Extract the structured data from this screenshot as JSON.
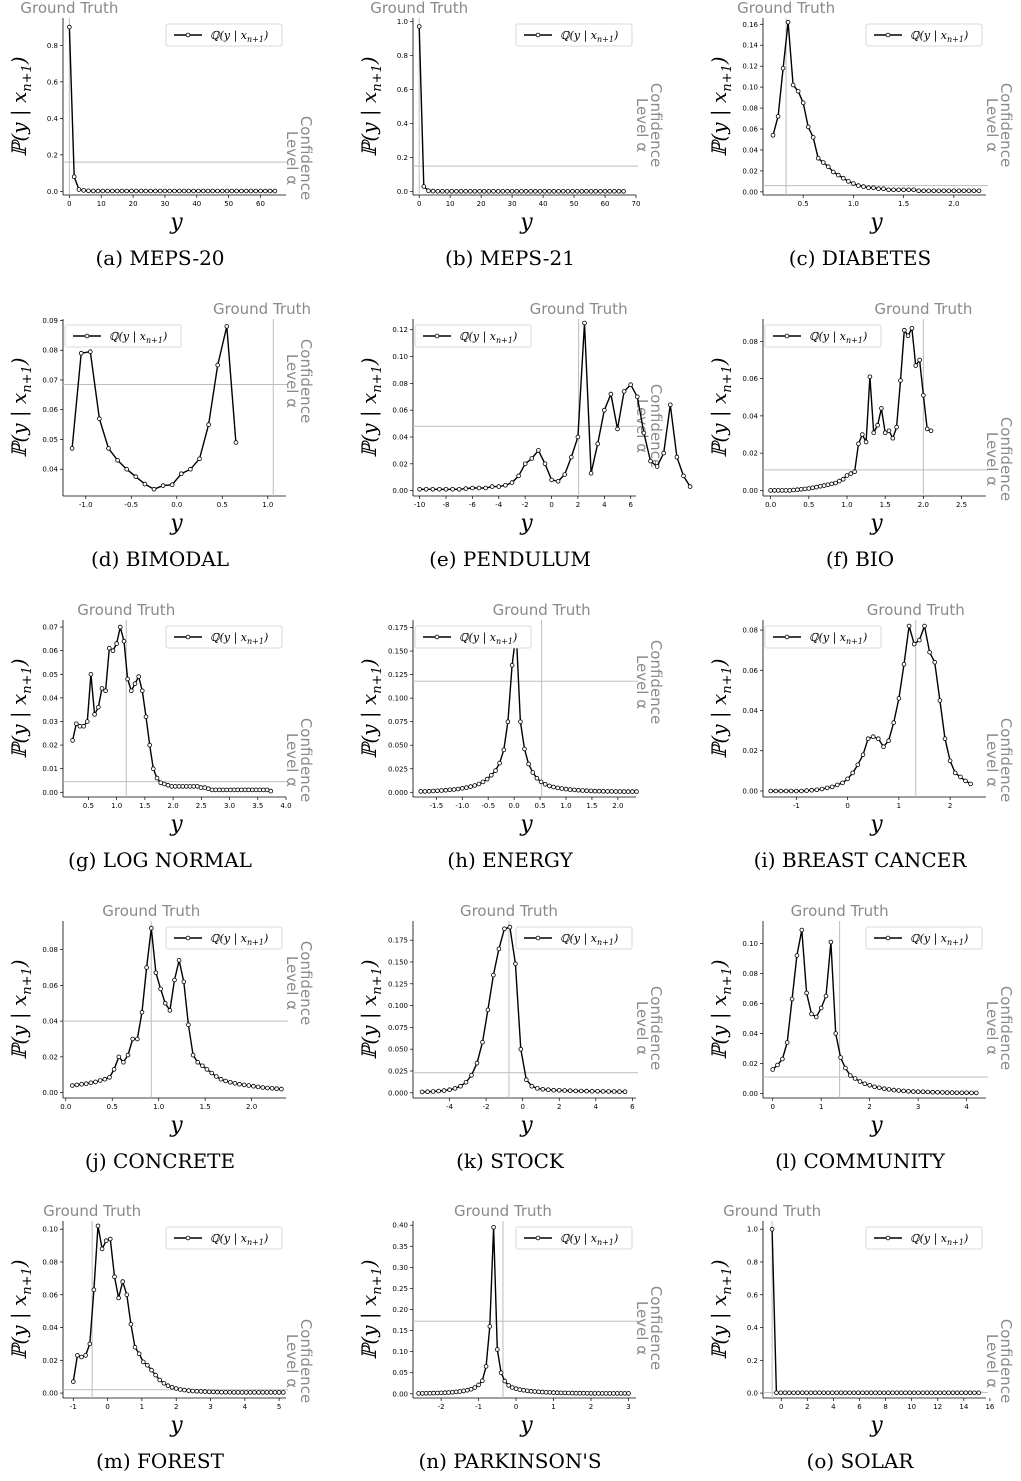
{
  "common": {
    "ylabel": "ℙ(y | x",
    "ylabel_sub": "n+1",
    "ylabel_end": ")",
    "xlabel": "y",
    "legend": "ℚ(y | x",
    "legend_sub": "n+1",
    "legend_end": ")",
    "ground_truth": "Ground Truth",
    "confidence_line1": "Confidence",
    "confidence_line2": "Level α"
  },
  "chart_data": [
    {
      "type": "line",
      "caption": "(a) MEPS-20",
      "xlim": [
        -2,
        68
      ],
      "ylim": [
        -0.02,
        0.95
      ],
      "xticks": [
        0,
        10,
        20,
        30,
        40,
        50,
        60
      ],
      "yticks": [
        0.0,
        0.2,
        0.4,
        0.6,
        0.8
      ],
      "ydec": 1,
      "x0": 0,
      "dx": 1.5,
      "y": [
        0.9,
        0.08,
        0.01,
        0.005,
        0.003,
        0.002,
        0.002,
        0.002,
        0.002,
        0.002,
        0.002,
        0.002,
        0.002,
        0.002,
        0.002,
        0.002,
        0.002,
        0.002,
        0.002,
        0.002,
        0.002,
        0.002,
        0.002,
        0.002,
        0.002,
        0.002,
        0.002,
        0.002,
        0.002,
        0.002,
        0.002,
        0.002,
        0.002,
        0.002,
        0.002,
        0.002,
        0.002,
        0.002,
        0.002,
        0.002,
        0.002,
        0.002,
        0.002,
        0.002
      ],
      "gt": 0,
      "gtpos": "left",
      "alpha": 0.16,
      "legend": "right",
      "clpos": "low"
    },
    {
      "type": "line",
      "caption": "(b) MEPS-21",
      "xlim": [
        -2,
        70
      ],
      "ylim": [
        -0.02,
        1.02
      ],
      "xticks": [
        0,
        10,
        20,
        30,
        40,
        50,
        60,
        70
      ],
      "yticks": [
        0.0,
        0.2,
        0.4,
        0.6,
        0.8,
        1.0
      ],
      "ydec": 1,
      "x0": 0,
      "dx": 1.5,
      "y": [
        0.97,
        0.03,
        0.005,
        0.003,
        0.002,
        0.002,
        0.002,
        0.002,
        0.002,
        0.002,
        0.002,
        0.002,
        0.002,
        0.002,
        0.002,
        0.002,
        0.002,
        0.002,
        0.002,
        0.002,
        0.002,
        0.002,
        0.002,
        0.002,
        0.002,
        0.002,
        0.002,
        0.002,
        0.002,
        0.002,
        0.002,
        0.002,
        0.002,
        0.002,
        0.002,
        0.002,
        0.002,
        0.002,
        0.002,
        0.002,
        0.002,
        0.002,
        0.002,
        0.002,
        0.002
      ],
      "gt": 0,
      "gtpos": "left",
      "alpha": 0.15,
      "legend": "right",
      "clpos": "mid"
    },
    {
      "type": "line",
      "caption": "(c) DIABETES",
      "xlim": [
        0.1,
        2.32
      ],
      "ylim": [
        -0.003,
        0.166
      ],
      "xticks": [
        0.5,
        1.0,
        1.5,
        2.0
      ],
      "yticks": [
        0.0,
        0.02,
        0.04,
        0.06,
        0.08,
        0.1,
        0.12,
        0.14,
        0.16
      ],
      "ydec": 2,
      "x0": 0.2,
      "dx": 0.05,
      "y": [
        0.054,
        0.072,
        0.118,
        0.162,
        0.102,
        0.096,
        0.085,
        0.062,
        0.052,
        0.032,
        0.028,
        0.024,
        0.019,
        0.016,
        0.013,
        0.01,
        0.008,
        0.006,
        0.005,
        0.004,
        0.004,
        0.003,
        0.003,
        0.002,
        0.002,
        0.002,
        0.002,
        0.002,
        0.002,
        0.001,
        0.001,
        0.001,
        0.001,
        0.001,
        0.001,
        0.001,
        0.001,
        0.001,
        0.001,
        0.001,
        0.001,
        0.001
      ],
      "gt": 0.33,
      "gtpos": "left",
      "alpha": 0.006,
      "legend": "right",
      "clpos": "mid"
    },
    {
      "type": "line",
      "caption": "(d) BIMODAL",
      "xlim": [
        -1.25,
        1.2
      ],
      "ylim": [
        0.031,
        0.0905
      ],
      "xticks": [
        -1.0,
        -0.5,
        0.0,
        0.5,
        1.0
      ],
      "yticks": [
        0.04,
        0.05,
        0.06,
        0.07,
        0.08,
        0.09
      ],
      "ydec": 2,
      "x0": -1.15,
      "dx": 0.1,
      "y": [
        0.047,
        0.079,
        0.0795,
        0.057,
        0.047,
        0.043,
        0.04,
        0.0375,
        0.035,
        0.0333,
        0.0345,
        0.0348,
        0.0385,
        0.04,
        0.0435,
        0.055,
        0.075,
        0.088,
        0.049
      ],
      "gt": 1.06,
      "gtpos": "right",
      "alpha": 0.0685,
      "legend": "left",
      "clpos": "high"
    },
    {
      "type": "line",
      "caption": "(e) PENDULUM",
      "xlim": [
        -10.5,
        6.4
      ],
      "ylim": [
        -0.004,
        0.128
      ],
      "xticks": [
        -10,
        -8,
        -6,
        -4,
        -2,
        0,
        2,
        4,
        6
      ],
      "yticks": [
        0.0,
        0.02,
        0.04,
        0.06,
        0.08,
        0.1,
        0.12
      ],
      "ydec": 2,
      "x0": -10,
      "dx": 0.5,
      "y": [
        0.001,
        0.001,
        0.001,
        0.001,
        0.001,
        0.001,
        0.001,
        0.0015,
        0.002,
        0.002,
        0.002,
        0.003,
        0.003,
        0.004,
        0.006,
        0.011,
        0.02,
        0.024,
        0.03,
        0.02,
        0.008,
        0.007,
        0.012,
        0.025,
        0.04,
        0.125,
        0.013,
        0.035,
        0.06,
        0.072,
        0.046,
        0.074,
        0.079,
        0.07,
        0.043,
        0.022,
        0.018,
        0.028,
        0.064,
        0.025,
        0.011,
        0.003
      ],
      "gt": 2.05,
      "gtpos": "right",
      "alpha": 0.048,
      "legend": "left",
      "clpos": "mid"
    },
    {
      "type": "line",
      "caption": "(f) BIO",
      "xlim": [
        -0.1,
        2.82
      ],
      "ylim": [
        -0.003,
        0.092
      ],
      "xticks": [
        0.0,
        0.5,
        1.0,
        1.5,
        2.0,
        2.5
      ],
      "yticks": [
        0.0,
        0.02,
        0.04,
        0.06,
        0.08
      ],
      "ydec": 2,
      "x0": 0.0,
      "dx": 0.05,
      "y": [
        0.0,
        0.0,
        0.0,
        0.0,
        0.0,
        0.0,
        0.0002,
        0.0004,
        0.0006,
        0.0008,
        0.001,
        0.0014,
        0.0018,
        0.0022,
        0.0026,
        0.003,
        0.0035,
        0.004,
        0.005,
        0.006,
        0.008,
        0.009,
        0.01,
        0.025,
        0.03,
        0.026,
        0.061,
        0.031,
        0.035,
        0.044,
        0.031,
        0.032,
        0.028,
        0.034,
        0.059,
        0.086,
        0.083,
        0.087,
        0.067,
        0.07,
        0.051,
        0.033,
        0.032
      ],
      "gt": 2.0,
      "gtpos": "left",
      "alpha": 0.011,
      "legend": "left",
      "clpos": "low"
    },
    {
      "type": "line",
      "caption": "(g) LOG NORMAL",
      "xlim": [
        0.05,
        4.0
      ],
      "ylim": [
        -0.002,
        0.073
      ],
      "xticks": [
        0.5,
        1.0,
        1.5,
        2.0,
        2.5,
        3.0,
        3.5,
        4.0
      ],
      "yticks": [
        0.0,
        0.01,
        0.02,
        0.03,
        0.04,
        0.05,
        0.06,
        0.07
      ],
      "ydec": 2,
      "x0": 0.22,
      "dx": 0.065,
      "y": [
        0.022,
        0.029,
        0.028,
        0.028,
        0.03,
        0.05,
        0.033,
        0.036,
        0.044,
        0.043,
        0.061,
        0.06,
        0.063,
        0.07,
        0.064,
        0.048,
        0.043,
        0.046,
        0.049,
        0.043,
        0.032,
        0.02,
        0.01,
        0.006,
        0.004,
        0.0035,
        0.003,
        0.0025,
        0.0025,
        0.0025,
        0.0025,
        0.0025,
        0.0025,
        0.0025,
        0.0025,
        0.002,
        0.002,
        0.0015,
        0.001,
        0.001,
        0.001,
        0.001,
        0.001,
        0.001,
        0.001,
        0.001,
        0.001,
        0.001,
        0.001,
        0.001,
        0.001,
        0.001,
        0.001,
        0.001,
        0.0005
      ],
      "gt": 1.17,
      "gtpos": "left",
      "alpha": 0.0045,
      "legend": "right",
      "clpos": "low"
    },
    {
      "type": "line",
      "caption": "(h) ENERGY",
      "xlim": [
        -1.95,
        2.35
      ],
      "ylim": [
        -0.005,
        0.183
      ],
      "xticks": [
        -1.5,
        -1.0,
        -0.5,
        0.0,
        0.5,
        1.0,
        1.5,
        2.0
      ],
      "yticks": [
        0.0,
        0.025,
        0.05,
        0.075,
        0.1,
        0.125,
        0.15,
        0.175
      ],
      "ydec": 3,
      "x0": -1.8,
      "dx": 0.08,
      "y": [
        0.0009,
        0.001,
        0.0012,
        0.0014,
        0.0016,
        0.0019,
        0.0022,
        0.0026,
        0.003,
        0.0035,
        0.0042,
        0.005,
        0.006,
        0.0072,
        0.0088,
        0.011,
        0.014,
        0.018,
        0.023,
        0.031,
        0.045,
        0.075,
        0.135,
        0.17,
        0.075,
        0.046,
        0.03,
        0.021,
        0.015,
        0.011,
        0.0085,
        0.0068,
        0.0056,
        0.0047,
        0.004,
        0.0034,
        0.0029,
        0.0025,
        0.0022,
        0.0019,
        0.0017,
        0.0015,
        0.0013,
        0.0012,
        0.0011,
        0.001,
        0.0009,
        0.0008,
        0.0008,
        0.0007,
        0.0007,
        0.0007,
        0.0007
      ],
      "gt": 0.53,
      "gtpos": "left",
      "alpha": 0.118,
      "legend": "left",
      "clpos": "high"
    },
    {
      "type": "line",
      "caption": "(i) BREAST CANCER",
      "xlim": [
        -1.65,
        2.7
      ],
      "ylim": [
        -0.003,
        0.085
      ],
      "xticks": [
        -1,
        0,
        1,
        2
      ],
      "yticks": [
        0.0,
        0.02,
        0.04,
        0.06,
        0.08
      ],
      "ydec": 2,
      "x0": -1.5,
      "dx": 0.1,
      "y": [
        0.0,
        0.0,
        0.0,
        0.0,
        0.0,
        0.0,
        0.0,
        0.0002,
        0.0004,
        0.0006,
        0.001,
        0.0015,
        0.002,
        0.003,
        0.004,
        0.006,
        0.009,
        0.013,
        0.018,
        0.026,
        0.027,
        0.026,
        0.022,
        0.025,
        0.034,
        0.046,
        0.063,
        0.082,
        0.073,
        0.075,
        0.082,
        0.069,
        0.064,
        0.045,
        0.026,
        0.015,
        0.009,
        0.007,
        0.005,
        0.0035
      ],
      "gt": 1.33,
      "gtpos": "left",
      "alpha": null,
      "legend": "left",
      "clpos": "low"
    },
    {
      "type": "line",
      "caption": "(j) CONCRETE",
      "xlim": [
        -0.03,
        2.37
      ],
      "ylim": [
        -0.003,
        0.096
      ],
      "xticks": [
        0.0,
        0.5,
        1.0,
        1.5,
        2.0
      ],
      "yticks": [
        0.0,
        0.02,
        0.04,
        0.06,
        0.08
      ],
      "ydec": 2,
      "x0": 0.07,
      "dx": 0.05,
      "y": [
        0.004,
        0.0043,
        0.0047,
        0.005,
        0.0055,
        0.006,
        0.0068,
        0.0075,
        0.0085,
        0.013,
        0.02,
        0.017,
        0.021,
        0.03,
        0.03,
        0.045,
        0.07,
        0.092,
        0.067,
        0.058,
        0.05,
        0.046,
        0.063,
        0.074,
        0.062,
        0.038,
        0.021,
        0.017,
        0.015,
        0.013,
        0.011,
        0.009,
        0.0075,
        0.0065,
        0.0058,
        0.0052,
        0.0047,
        0.0043,
        0.004,
        0.0036,
        0.0032,
        0.0029,
        0.0026,
        0.0024,
        0.0022,
        0.002
      ],
      "gt": 0.92,
      "gtpos": "left",
      "alpha": 0.04,
      "legend": "right",
      "clpos": "high"
    },
    {
      "type": "line",
      "caption": "(k) STOCK",
      "xlim": [
        -6.0,
        6.2
      ],
      "ylim": [
        -0.006,
        0.197
      ],
      "xticks": [
        -4,
        -2,
        0,
        2,
        4,
        6
      ],
      "yticks": [
        0.0,
        0.025,
        0.05,
        0.075,
        0.1,
        0.125,
        0.15,
        0.175
      ],
      "ydec": 3,
      "x0": -5.5,
      "dx": 0.3,
      "y": [
        0.001,
        0.0012,
        0.0015,
        0.002,
        0.0025,
        0.0035,
        0.005,
        0.0075,
        0.012,
        0.02,
        0.034,
        0.058,
        0.095,
        0.135,
        0.165,
        0.188,
        0.19,
        0.148,
        0.05,
        0.015,
        0.0075,
        0.005,
        0.004,
        0.0035,
        0.003,
        0.0028,
        0.0026,
        0.0024,
        0.0022,
        0.002,
        0.0019,
        0.0018,
        0.0017,
        0.0016,
        0.0015,
        0.0014,
        0.0013,
        0.0012
      ],
      "gt": -0.75,
      "gtpos": "left",
      "alpha": 0.023,
      "legend": "right",
      "clpos": "mid"
    },
    {
      "type": "line",
      "caption": "(l) COMMUNITY",
      "xlim": [
        -0.2,
        4.4
      ],
      "ylim": [
        -0.003,
        0.115
      ],
      "xticks": [
        0,
        1,
        2,
        3,
        4
      ],
      "yticks": [
        0.0,
        0.02,
        0.04,
        0.06,
        0.08,
        0.1
      ],
      "ydec": 2,
      "x0": 0.0,
      "dx": 0.1,
      "y": [
        0.016,
        0.019,
        0.023,
        0.034,
        0.063,
        0.092,
        0.109,
        0.067,
        0.053,
        0.051,
        0.057,
        0.065,
        0.101,
        0.04,
        0.024,
        0.017,
        0.012,
        0.01,
        0.008,
        0.0065,
        0.0055,
        0.0045,
        0.0038,
        0.0032,
        0.0027,
        0.0023,
        0.002,
        0.0017,
        0.0015,
        0.0013,
        0.0012,
        0.0011,
        0.001,
        0.0009,
        0.0008,
        0.0007,
        0.0006,
        0.0006,
        0.0005,
        0.0005,
        0.0005,
        0.0004,
        0.0004
      ],
      "gt": 1.38,
      "gtpos": "left",
      "alpha": 0.011,
      "legend": "right",
      "clpos": "mid"
    },
    {
      "type": "line",
      "caption": "(m) FOREST",
      "xlim": [
        -1.3,
        5.2
      ],
      "ylim": [
        -0.003,
        0.105
      ],
      "xticks": [
        -1,
        0,
        1,
        2,
        3,
        4,
        5
      ],
      "yticks": [
        0.0,
        0.02,
        0.04,
        0.06,
        0.08,
        0.1
      ],
      "ydec": 2,
      "x0": -1.0,
      "dx": 0.12,
      "y": [
        0.007,
        0.023,
        0.022,
        0.023,
        0.03,
        0.063,
        0.102,
        0.088,
        0.093,
        0.094,
        0.071,
        0.058,
        0.068,
        0.06,
        0.042,
        0.028,
        0.024,
        0.019,
        0.017,
        0.014,
        0.011,
        0.008,
        0.006,
        0.0045,
        0.0035,
        0.0028,
        0.0022,
        0.0018,
        0.0015,
        0.0013,
        0.0011,
        0.001,
        0.0009,
        0.0008,
        0.0007,
        0.0006,
        0.0005,
        0.0005,
        0.0005,
        0.0004,
        0.0004,
        0.0004,
        0.0004,
        0.0004,
        0.0004,
        0.0004,
        0.0004,
        0.0004,
        0.0004,
        0.0004,
        0.0004,
        0.0004
      ],
      "gt": -0.45,
      "gtpos": "left",
      "alpha": 0.002,
      "legend": "right",
      "clpos": "low"
    },
    {
      "type": "line",
      "caption": "(n) PARKINSON'S",
      "xlim": [
        -2.75,
        3.2
      ],
      "ylim": [
        -0.01,
        0.41
      ],
      "xticks": [
        -2,
        -1,
        0,
        1,
        2,
        3
      ],
      "yticks": [
        0.0,
        0.05,
        0.1,
        0.15,
        0.2,
        0.25,
        0.3,
        0.35,
        0.4
      ],
      "ydec": 2,
      "x0": -2.6,
      "dx": 0.1,
      "y": [
        0.001,
        0.001,
        0.0012,
        0.0014,
        0.0016,
        0.0019,
        0.0022,
        0.0026,
        0.003,
        0.0036,
        0.0044,
        0.0054,
        0.0068,
        0.0086,
        0.011,
        0.015,
        0.021,
        0.031,
        0.065,
        0.16,
        0.395,
        0.105,
        0.05,
        0.03,
        0.02,
        0.015,
        0.012,
        0.01,
        0.0085,
        0.0072,
        0.0062,
        0.0054,
        0.0047,
        0.0041,
        0.0036,
        0.0032,
        0.0028,
        0.0025,
        0.0022,
        0.002,
        0.0018,
        0.0016,
        0.0015,
        0.0014,
        0.0013,
        0.0012,
        0.0011,
        0.001,
        0.001,
        0.001,
        0.001,
        0.001,
        0.001,
        0.001,
        0.001,
        0.001,
        0.001
      ],
      "gt": -0.35,
      "gtpos": "left",
      "alpha": 0.172,
      "legend": "right",
      "clpos": "mid"
    },
    {
      "type": "line",
      "caption": "(o) SOLAR",
      "xlim": [
        -1.4,
        15.7
      ],
      "ylim": [
        -0.03,
        1.05
      ],
      "xticks": [
        0,
        2,
        4,
        6,
        8,
        10,
        12,
        14,
        16
      ],
      "yticks": [
        0.0,
        0.2,
        0.4,
        0.6,
        0.8,
        1.0
      ],
      "ydec": 1,
      "x0": -0.7,
      "dx": 0.33,
      "y": [
        1.0,
        0.002,
        0.002,
        0.002,
        0.002,
        0.002,
        0.002,
        0.002,
        0.002,
        0.002,
        0.002,
        0.002,
        0.002,
        0.002,
        0.002,
        0.002,
        0.002,
        0.002,
        0.002,
        0.002,
        0.002,
        0.002,
        0.002,
        0.002,
        0.002,
        0.002,
        0.002,
        0.002,
        0.002,
        0.002,
        0.002,
        0.002,
        0.002,
        0.002,
        0.002,
        0.002,
        0.002,
        0.002,
        0.002,
        0.002,
        0.002,
        0.002,
        0.002,
        0.002,
        0.002,
        0.002,
        0.002,
        0.002,
        0.002
      ],
      "gt": -0.7,
      "gtpos": "left",
      "alpha": 0.003,
      "legend": "right",
      "clpos": "low"
    }
  ]
}
